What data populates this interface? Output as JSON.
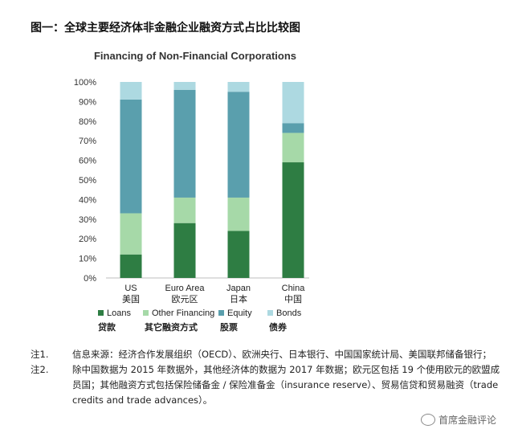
{
  "figure_title": "图一：全球主要经济体非金融企业融资方式占比比较图",
  "chart_data": {
    "type": "bar",
    "stacked": true,
    "title": "Financing of Non-Financial Corporations",
    "categories": [
      {
        "en": "US",
        "zh": "美国"
      },
      {
        "en": "Euro Area",
        "zh": "欧元区"
      },
      {
        "en": "Japan",
        "zh": "日本"
      },
      {
        "en": "China",
        "zh": "中国"
      }
    ],
    "series": [
      {
        "name": "Loans",
        "name_zh": "贷款",
        "color": "#2e7d43",
        "values": [
          12,
          28,
          24,
          59
        ]
      },
      {
        "name": "Other Financing",
        "name_zh": "其它融资方式",
        "color": "#a6d9a8",
        "values": [
          21,
          13,
          17,
          15
        ]
      },
      {
        "name": "Equity",
        "name_zh": "股票",
        "color": "#5a9fad",
        "values": [
          58,
          55,
          54,
          5
        ]
      },
      {
        "name": "Bonds",
        "name_zh": "债券",
        "color": "#add9e1",
        "values": [
          9,
          4,
          5,
          21
        ]
      }
    ],
    "yticks": [
      "0%",
      "10%",
      "20%",
      "30%",
      "40%",
      "50%",
      "60%",
      "70%",
      "80%",
      "90%",
      "100%"
    ],
    "ylim": [
      0,
      100
    ],
    "grid": false,
    "legend_position": "bottom"
  },
  "notes": [
    {
      "tag": "注1.",
      "text": "信息来源：经济合作发展组织（OECD）、欧洲央行、日本银行、中国国家统计局、美国联邦储备银行；"
    },
    {
      "tag": "注2.",
      "text": "除中国数据为 2015 年数据外，其他经济体的数据为 2017 年数据；欧元区包括 19 个使用欧元的欧盟成员国；其他融资方式包括保险储备金 / 保险准备金（insurance reserve）、贸易信贷和贸易融资（trade credits and trade advances）。"
    }
  ],
  "watermark": "首席金融评论"
}
